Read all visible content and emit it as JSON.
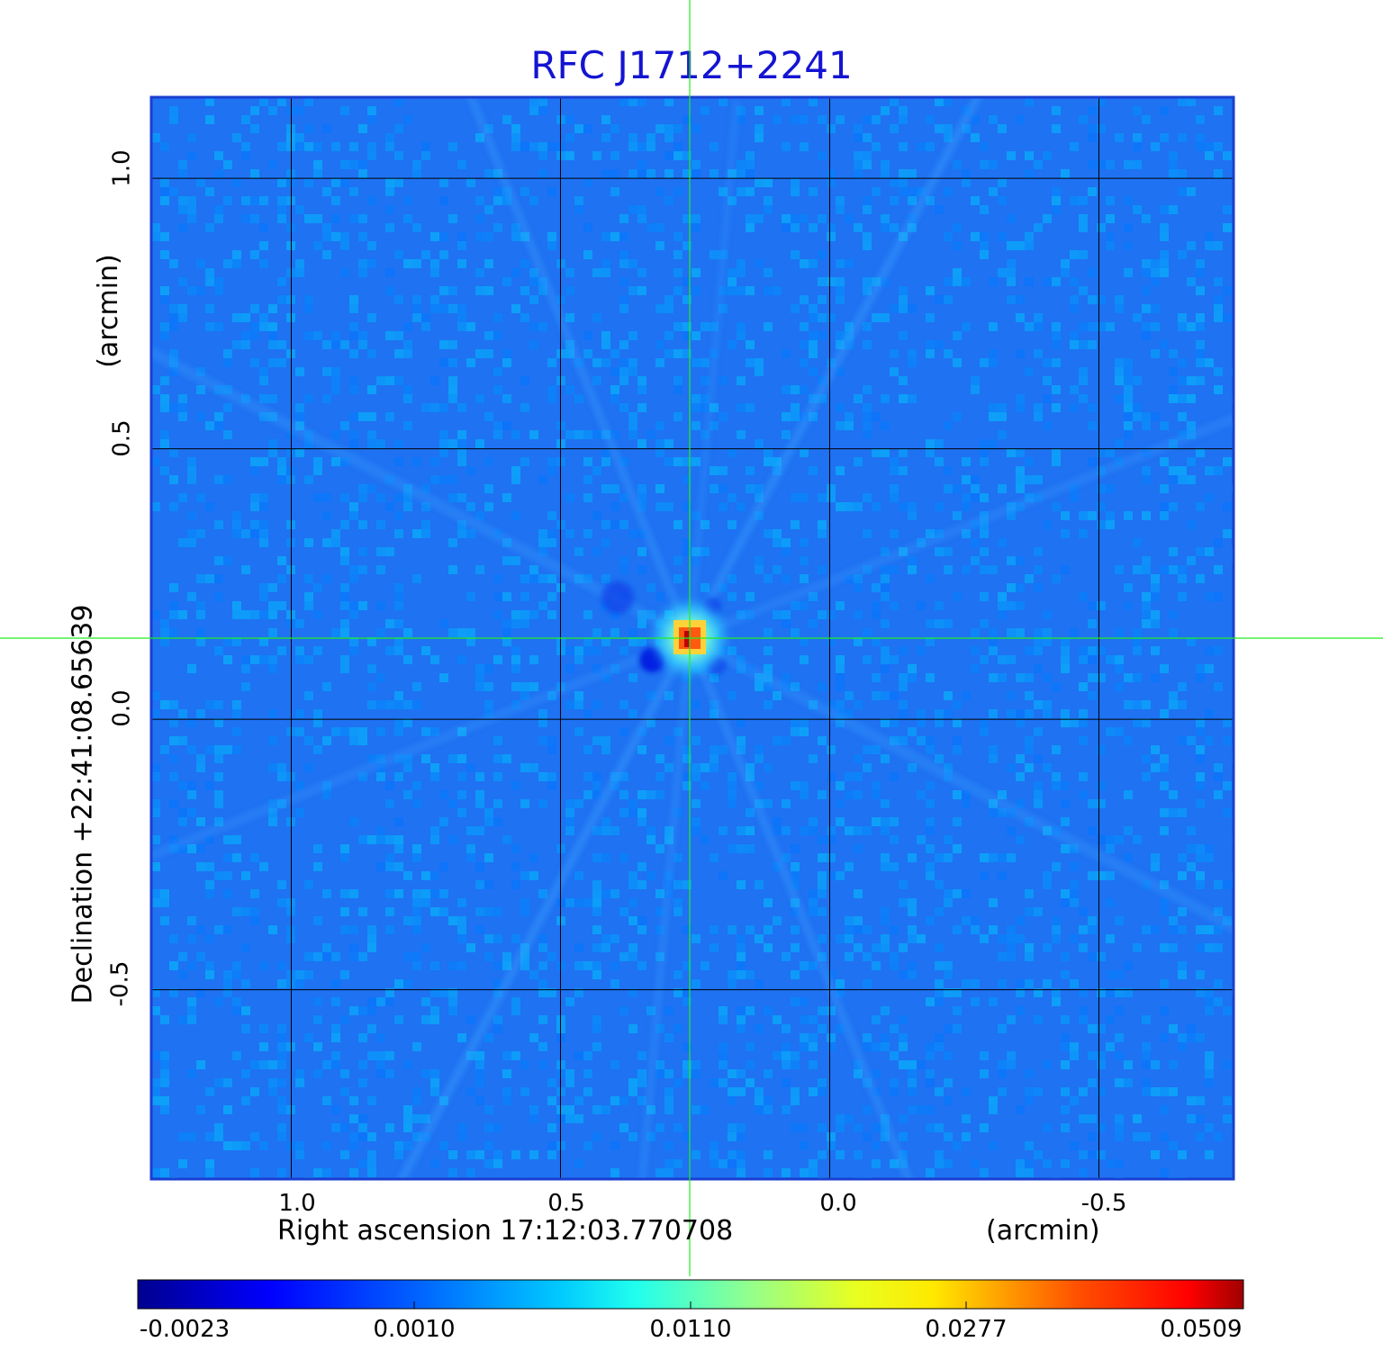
{
  "title": "RFC J1712+2241",
  "colors": {
    "title": "#1414d2",
    "crosshair": "#22ee22",
    "frame": "#1a3fd0",
    "grid": "#000000",
    "background_field": "#1f72f2"
  },
  "axes": {
    "x_ticks": [
      "1.0",
      "0.5",
      "0.0",
      "-0.5"
    ],
    "x_label_left": "Right ascension  17:12:03.770708",
    "x_label_right": "(arcmin)",
    "y_ticks": [
      "1.0",
      "0.5",
      "0.0",
      "-0.5"
    ],
    "y_label_left": "Declination  +22:41:08.65639",
    "y_label_right": "(arcmin)"
  },
  "colorbar": {
    "colormap": "jet",
    "ticks": [
      "-0.0023",
      "0.0010",
      "0.0110",
      "0.0277",
      "0.0509"
    ]
  },
  "chart_data": {
    "type": "heatmap",
    "title": "RFC J1712+2241",
    "xlabel": "Right ascension  17:12:03.770708 (arcmin)",
    "ylabel": "Declination  +22:41:08.65639 (arcmin)",
    "x_ticks": [
      1.0,
      0.5,
      0.0,
      -0.5
    ],
    "y_ticks": [
      1.0,
      0.5,
      0.0,
      -0.5
    ],
    "xlim": [
      1.26,
      -0.75
    ],
    "ylim": [
      -0.85,
      1.15
    ],
    "value_range": [
      -0.0023,
      0.0509
    ],
    "colorbar_ticks": [
      -0.0023,
      0.001,
      0.011,
      0.0277,
      0.0509
    ],
    "colormap": "jet",
    "grid": true,
    "crosshair": true,
    "peak": {
      "x": 0.26,
      "y": 0.15,
      "value": 0.0509
    },
    "minimum": {
      "x": 0.33,
      "y": 0.11,
      "value": -0.0023
    }
  }
}
